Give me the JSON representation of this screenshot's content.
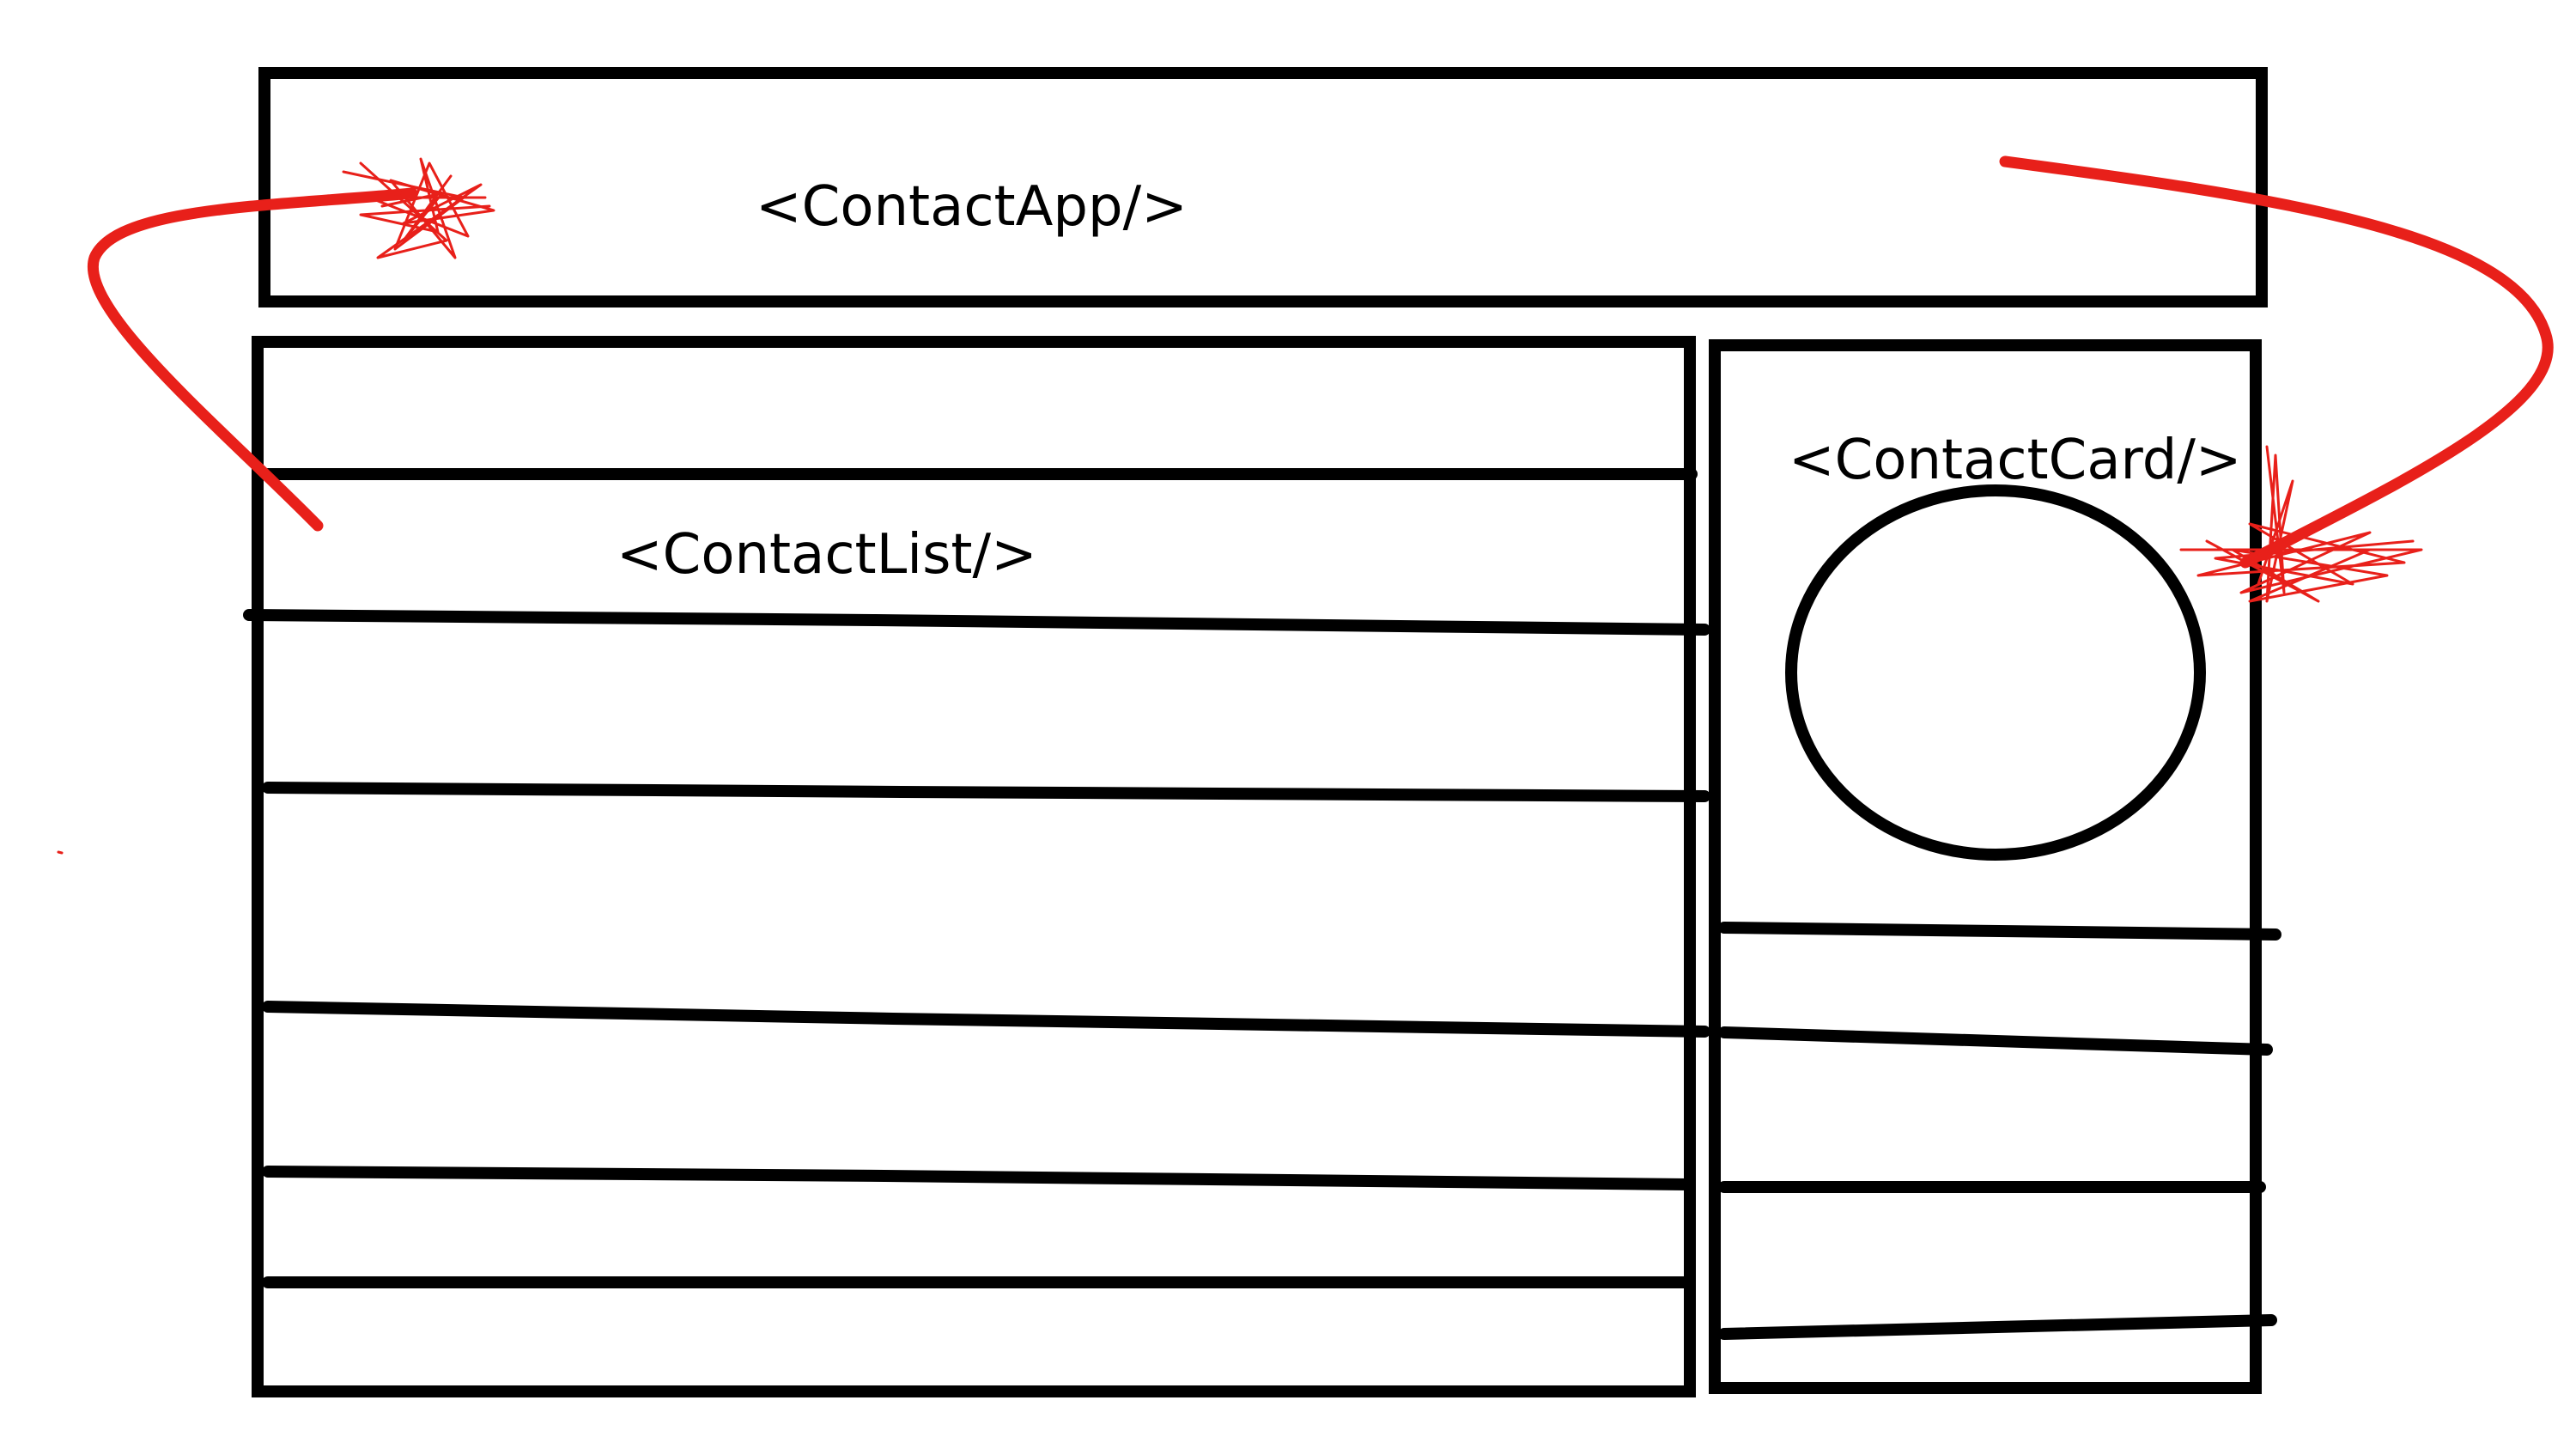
{
  "labels": {
    "app": "<ContactApp/>",
    "list": "<ContactList/>",
    "card": "<ContactCard/>"
  },
  "colors": {
    "ink": "#000000",
    "annotation": "#e8201a",
    "background": "#ffffff"
  }
}
